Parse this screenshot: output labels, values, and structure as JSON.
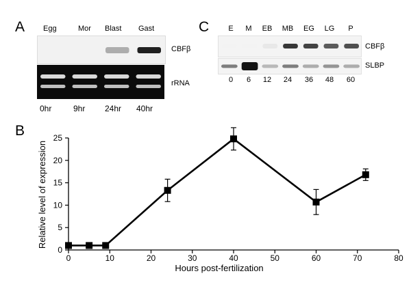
{
  "figure": {
    "panel_a": {
      "letter": "A",
      "stages": [
        "Egg",
        "Mor",
        "Blast",
        "Gast"
      ],
      "rows": [
        "CBFβ",
        "rRNA"
      ],
      "times": [
        "0hr",
        "9hr",
        "24hr",
        "40hr"
      ],
      "cbf_band_intensity": [
        0.0,
        0.0,
        0.35,
        0.95
      ]
    },
    "panel_b": {
      "letter": "B"
    },
    "panel_c": {
      "letter": "C",
      "stages": [
        "E",
        "M",
        "EB",
        "MB",
        "EG",
        "LG",
        "P"
      ],
      "rows": [
        "CBFβ",
        "SLBP"
      ],
      "times": [
        "0",
        "6",
        "12",
        "24",
        "36",
        "48",
        "60"
      ],
      "cbf_band_intensity": [
        0.05,
        0.05,
        0.1,
        0.85,
        0.8,
        0.7,
        0.75
      ],
      "slbp_band_intensity": [
        0.55,
        1.0,
        0.3,
        0.55,
        0.35,
        0.45,
        0.35
      ]
    }
  },
  "chart_data": {
    "type": "line",
    "xlabel": "Hours post-fertilization",
    "ylabel": "Relative level of expression",
    "xlim": [
      0,
      80
    ],
    "ylim": [
      0,
      25
    ],
    "xticks": [
      0,
      10,
      20,
      30,
      40,
      50,
      60,
      70,
      80
    ],
    "yticks": [
      0,
      5,
      10,
      15,
      20,
      25
    ],
    "series": [
      {
        "x": [
          0,
          5,
          9,
          24,
          40,
          60,
          72
        ],
        "y": [
          1,
          1,
          1,
          13.3,
          24.8,
          10.7,
          16.8
        ],
        "error": [
          0.4,
          0.3,
          0.4,
          2.5,
          2.5,
          2.8,
          1.3
        ]
      }
    ],
    "color": "#000000"
  }
}
